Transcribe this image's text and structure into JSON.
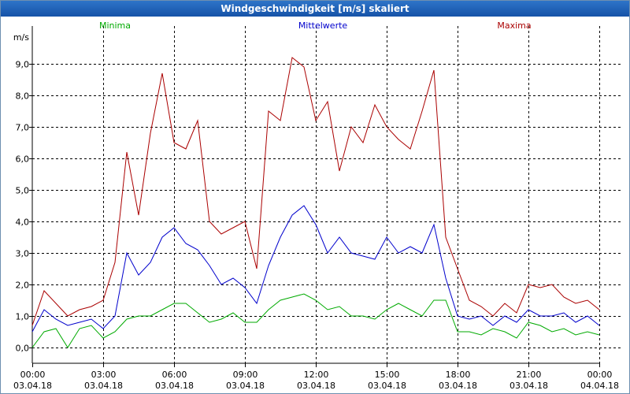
{
  "window": {
    "title": "Windgeschwindigkeit [m/s] skaliert"
  },
  "colors": {
    "min": "#00aa00",
    "avg": "#0000cc",
    "max": "#aa0000",
    "grid": "#000000",
    "title_bar": "#1b5fb5"
  },
  "chart_data": {
    "type": "line",
    "title": "Windgeschwindigkeit [m/s] skaliert",
    "ylabel": "m/s",
    "xlabel": "",
    "ylim": [
      -0.5,
      10.2
    ],
    "xlim": [
      0,
      24
    ],
    "grid": true,
    "legend_position": "top",
    "yticks": [
      {
        "v": 0,
        "label": "0,0"
      },
      {
        "v": 1,
        "label": "1,0"
      },
      {
        "v": 2,
        "label": "2,0"
      },
      {
        "v": 3,
        "label": "3,0"
      },
      {
        "v": 4,
        "label": "4,0"
      },
      {
        "v": 5,
        "label": "5,0"
      },
      {
        "v": 6,
        "label": "6,0"
      },
      {
        "v": 7,
        "label": "7,0"
      },
      {
        "v": 8,
        "label": "8,0"
      },
      {
        "v": 9,
        "label": "9,0"
      }
    ],
    "xticks": [
      {
        "h": 0,
        "time": "00:00",
        "date": "03.04.18"
      },
      {
        "h": 3,
        "time": "03:00",
        "date": "03.04.18"
      },
      {
        "h": 6,
        "time": "06:00",
        "date": "03.04.18"
      },
      {
        "h": 9,
        "time": "09:00",
        "date": "03.04.18"
      },
      {
        "h": 12,
        "time": "12:00",
        "date": "03.04.18"
      },
      {
        "h": 15,
        "time": "15:00",
        "date": "03.04.18"
      },
      {
        "h": 18,
        "time": "18:00",
        "date": "03.04.18"
      },
      {
        "h": 21,
        "time": "21:00",
        "date": "03.04.18"
      },
      {
        "h": 24,
        "time": "00:00",
        "date": "04.04.18"
      }
    ],
    "x_hours": [
      0,
      0.5,
      1,
      1.5,
      2,
      2.5,
      3,
      3.5,
      4,
      4.5,
      5,
      5.5,
      6,
      6.5,
      7,
      7.5,
      8,
      8.5,
      9,
      9.5,
      10,
      10.5,
      11,
      11.5,
      12,
      12.5,
      13,
      13.5,
      14,
      14.5,
      15,
      15.5,
      16,
      16.5,
      17,
      17.5,
      18,
      18.5,
      19,
      19.5,
      20,
      20.5,
      21,
      21.5,
      22,
      22.5,
      23,
      23.5,
      24
    ],
    "series": [
      {
        "name": "Minima",
        "color": "#00aa00",
        "values": [
          0.0,
          0.5,
          0.6,
          0.0,
          0.6,
          0.7,
          0.3,
          0.5,
          0.9,
          1.0,
          1.0,
          1.2,
          1.4,
          1.4,
          1.1,
          0.8,
          0.9,
          1.1,
          0.8,
          0.8,
          1.2,
          1.5,
          1.6,
          1.7,
          1.5,
          1.2,
          1.3,
          1.0,
          1.0,
          0.9,
          1.2,
          1.4,
          1.2,
          1.0,
          1.5,
          1.5,
          0.5,
          0.5,
          0.4,
          0.6,
          0.5,
          0.3,
          0.8,
          0.7,
          0.5,
          0.6,
          0.4,
          0.5,
          0.4
        ]
      },
      {
        "name": "Mittelwerte",
        "color": "#0000cc",
        "values": [
          0.5,
          1.2,
          0.9,
          0.7,
          0.8,
          0.9,
          0.6,
          1.0,
          3.0,
          2.3,
          2.7,
          3.5,
          3.8,
          3.3,
          3.1,
          2.6,
          2.0,
          2.2,
          1.9,
          1.4,
          2.6,
          3.5,
          4.2,
          4.5,
          3.9,
          3.0,
          3.5,
          3.0,
          2.9,
          2.8,
          3.5,
          3.0,
          3.2,
          3.0,
          3.9,
          2.2,
          1.0,
          0.9,
          1.0,
          0.7,
          1.0,
          0.8,
          1.2,
          1.0,
          1.0,
          1.1,
          0.8,
          1.0,
          0.7
        ]
      },
      {
        "name": "Maxima",
        "color": "#aa0000",
        "values": [
          0.7,
          1.8,
          1.4,
          1.0,
          1.2,
          1.3,
          1.5,
          2.7,
          6.2,
          4.2,
          6.8,
          8.7,
          6.5,
          6.3,
          7.2,
          4.0,
          3.6,
          3.8,
          4.0,
          2.5,
          7.5,
          7.2,
          9.2,
          8.9,
          7.2,
          7.8,
          5.6,
          7.0,
          6.5,
          7.7,
          7.0,
          6.6,
          6.3,
          7.5,
          8.8,
          3.5,
          2.5,
          1.5,
          1.3,
          1.0,
          1.4,
          1.1,
          2.0,
          1.9,
          2.0,
          1.6,
          1.4,
          1.5,
          1.2
        ]
      }
    ]
  }
}
